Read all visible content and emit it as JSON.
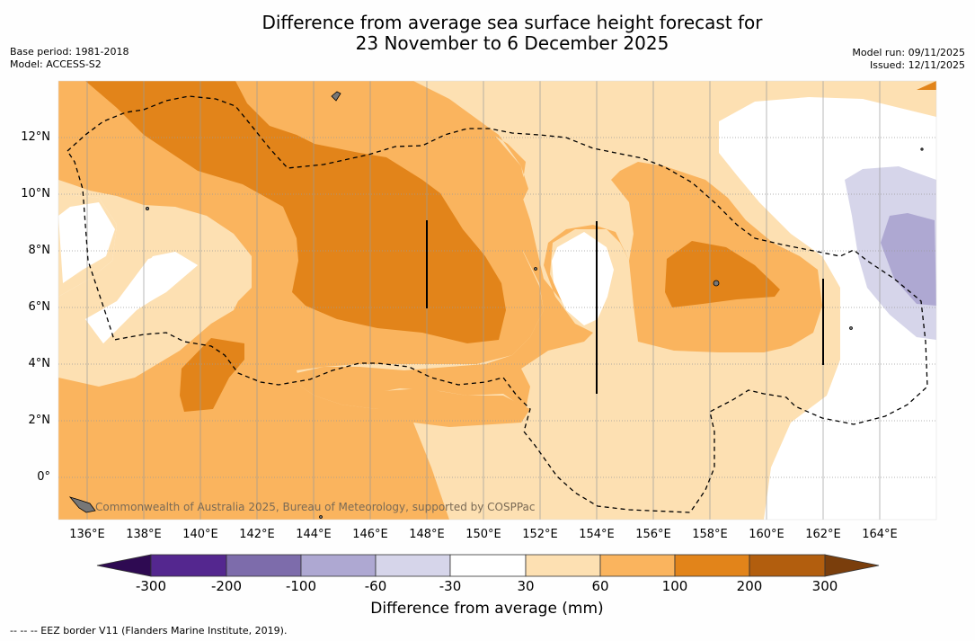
{
  "title_line1": "Difference from average sea surface height forecast for",
  "title_line2": "23 November to 6 December 2025",
  "base_period": "Base period: 1981-2018",
  "model": "Model: ACCESS-S2",
  "model_run": "Model run: 09/11/2025",
  "issued": "Issued: 12/11/2025",
  "credit": "Commonwealth of Australia 2025, Bureau of Meteorology, supported by COSPPac",
  "footnote": "--  --  -- EEZ border V11 (Flanders Marine Institute, 2019).",
  "lat_labels": [
    "12°N",
    "10°N",
    "8°N",
    "6°N",
    "4°N",
    "2°N",
    "0°"
  ],
  "lon_labels": [
    "136°E",
    "138°E",
    "140°E",
    "142°E",
    "144°E",
    "146°E",
    "148°E",
    "150°E",
    "152°E",
    "154°E",
    "156°E",
    "158°E",
    "160°E",
    "162°E",
    "164°E"
  ],
  "colorbar": {
    "title": "Difference from average (mm)",
    "ticks": [
      "-300",
      "-200",
      "-100",
      "-60",
      "-30",
      "30",
      "60",
      "100",
      "200",
      "300"
    ],
    "colors": [
      "#2e0a52",
      "#54278f",
      "#7d6cab",
      "#aea8d2",
      "#d6d5ea",
      "#ffffff",
      "#fde0b2",
      "#fab45e",
      "#e2841a",
      "#b25e0e",
      "#7a3e0c"
    ]
  },
  "map_colors": {
    "c30_60": "#fde0b2",
    "c60_100": "#fab45e",
    "c100_200": "#e2841a",
    "cneg30_60": "#d6d5ea",
    "cneg60_100": "#aea8d2"
  }
}
